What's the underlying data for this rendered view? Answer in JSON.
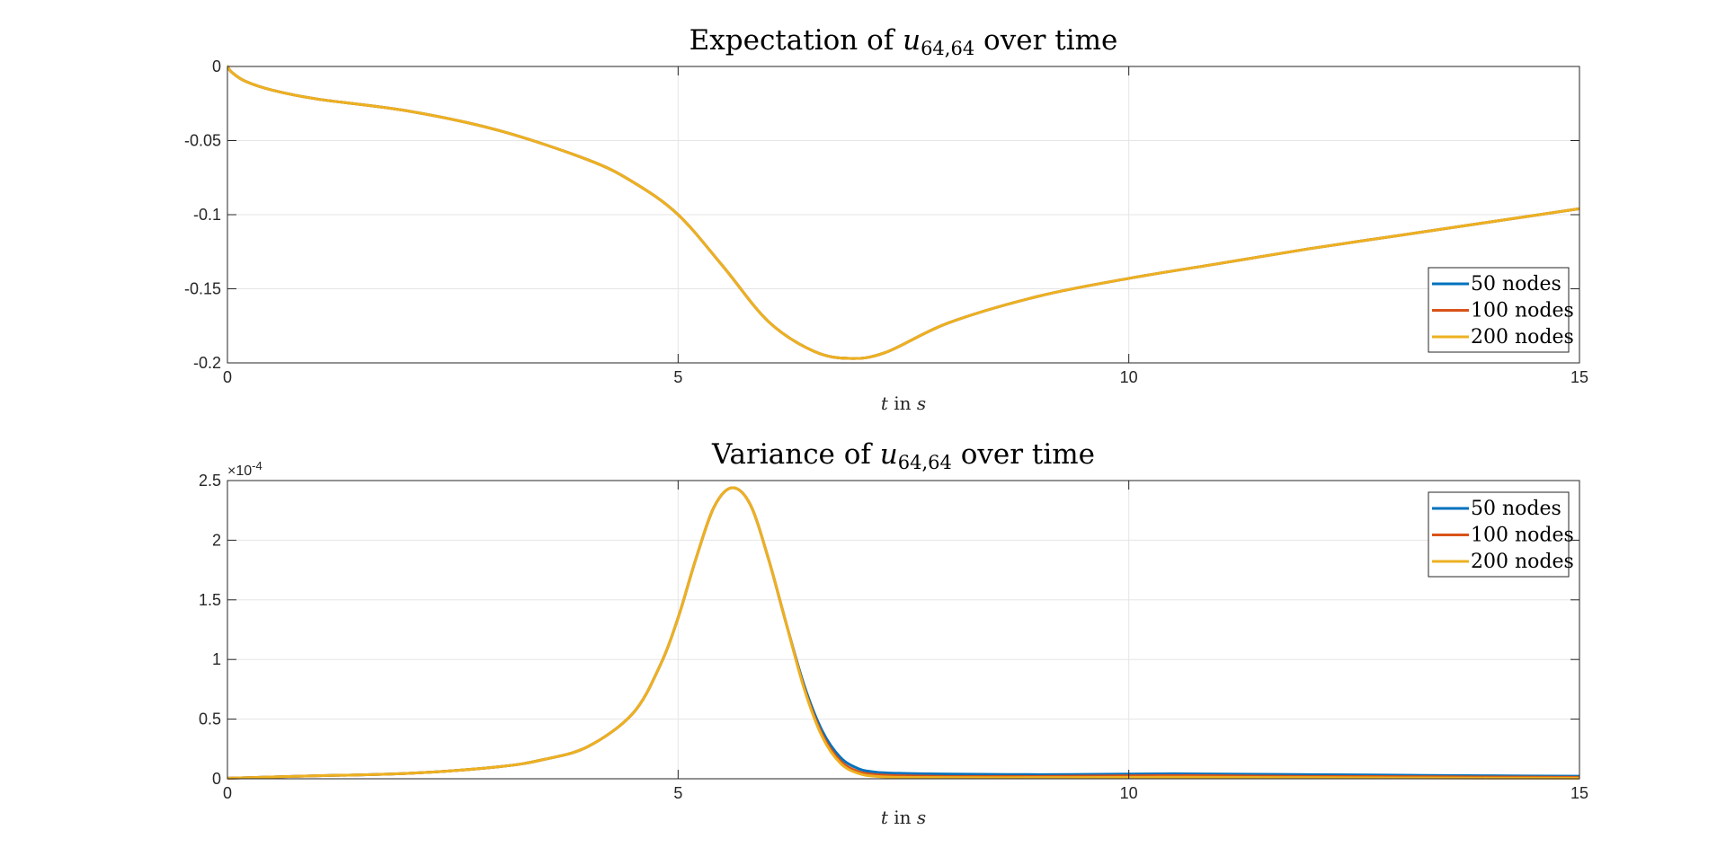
{
  "chart_data": [
    {
      "type": "line",
      "title": "Expectation of u_{64,64} over time",
      "title_parts": {
        "prefix": "Expectation of ",
        "var": "u",
        "sub": "64,64",
        "suffix": " over time"
      },
      "xlabel": "t in s",
      "xlabel_parts": {
        "t": "t",
        "in": " in ",
        "s": "s"
      },
      "ylabel": "",
      "xlim": [
        0,
        15
      ],
      "ylim": [
        -0.2,
        0
      ],
      "xticks": [
        0,
        5,
        10,
        15
      ],
      "xtick_labels": [
        "0",
        "5",
        "10",
        "15"
      ],
      "yticks": [
        0,
        -0.05,
        -0.1,
        -0.15,
        -0.2
      ],
      "ytick_labels": [
        "0",
        "-0.05",
        "-0.1",
        "-0.15",
        "-0.2"
      ],
      "grid": true,
      "legend_location": "southeast",
      "x": [
        0,
        0.05,
        0.2,
        0.5,
        1,
        2,
        3,
        4,
        4.5,
        5,
        5.5,
        6,
        6.5,
        6.9,
        7.3,
        8,
        9,
        10,
        11,
        12,
        13,
        14,
        15
      ],
      "series": [
        {
          "name": "50 nodes",
          "color": "#0072BD",
          "values": [
            0,
            -0.004,
            -0.01,
            -0.016,
            -0.022,
            -0.03,
            -0.043,
            -0.063,
            -0.078,
            -0.1,
            -0.135,
            -0.172,
            -0.192,
            -0.197,
            -0.193,
            -0.173,
            -0.155,
            -0.143,
            -0.133,
            -0.123,
            -0.114,
            -0.105,
            -0.096
          ]
        },
        {
          "name": "100 nodes",
          "color": "#D95319",
          "values": [
            0,
            -0.004,
            -0.01,
            -0.016,
            -0.022,
            -0.03,
            -0.043,
            -0.063,
            -0.078,
            -0.1,
            -0.135,
            -0.172,
            -0.192,
            -0.197,
            -0.193,
            -0.173,
            -0.155,
            -0.143,
            -0.133,
            -0.123,
            -0.114,
            -0.105,
            -0.096
          ]
        },
        {
          "name": "200 nodes",
          "color": "#EDB120",
          "values": [
            0,
            -0.004,
            -0.01,
            -0.016,
            -0.022,
            -0.03,
            -0.043,
            -0.063,
            -0.078,
            -0.1,
            -0.135,
            -0.172,
            -0.192,
            -0.197,
            -0.193,
            -0.173,
            -0.155,
            -0.143,
            -0.133,
            -0.123,
            -0.114,
            -0.105,
            -0.096
          ]
        }
      ]
    },
    {
      "type": "line",
      "title": "Variance of u_{64,64} over time",
      "title_parts": {
        "prefix": "Variance of ",
        "var": "u",
        "sub": "64,64",
        "suffix": " over time"
      },
      "xlabel": "t in s",
      "xlabel_parts": {
        "t": "t",
        "in": " in ",
        "s": "s"
      },
      "ylabel": "",
      "xlim": [
        0,
        15
      ],
      "ylim": [
        0,
        2.5
      ],
      "y_exponent_label": {
        "base": "×10",
        "exp": "-4"
      },
      "xticks": [
        0,
        5,
        10,
        15
      ],
      "xtick_labels": [
        "0",
        "5",
        "10",
        "15"
      ],
      "yticks": [
        0,
        0.5,
        1,
        1.5,
        2,
        2.5
      ],
      "ytick_labels": [
        "0",
        "0.5",
        "1",
        "1.5",
        "2",
        "2.5"
      ],
      "grid": true,
      "legend_location": "northeast",
      "x": [
        0,
        1,
        2,
        3,
        3.5,
        4,
        4.5,
        4.8,
        5,
        5.2,
        5.4,
        5.6,
        5.8,
        6,
        6.2,
        6.4,
        6.6,
        6.8,
        7,
        7.2,
        7.5,
        8,
        9,
        10,
        10.5,
        11,
        12,
        13,
        14,
        15
      ],
      "series": [
        {
          "name": "50 nodes",
          "color": "#0072BD",
          "values": [
            0.005,
            0.025,
            0.045,
            0.1,
            0.16,
            0.27,
            0.55,
            0.95,
            1.35,
            1.85,
            2.28,
            2.44,
            2.3,
            1.85,
            1.3,
            0.78,
            0.4,
            0.18,
            0.085,
            0.055,
            0.045,
            0.04,
            0.035,
            0.04,
            0.042,
            0.04,
            0.035,
            0.03,
            0.025,
            0.022
          ]
        },
        {
          "name": "100 nodes",
          "color": "#D95319",
          "values": [
            0.005,
            0.025,
            0.045,
            0.1,
            0.16,
            0.27,
            0.55,
            0.95,
            1.35,
            1.85,
            2.28,
            2.44,
            2.3,
            1.85,
            1.3,
            0.76,
            0.37,
            0.15,
            0.06,
            0.035,
            0.025,
            0.02,
            0.02,
            0.025,
            0.026,
            0.025,
            0.02,
            0.018,
            0.015,
            0.012
          ]
        },
        {
          "name": "200 nodes",
          "color": "#EDB120",
          "values": [
            0.005,
            0.025,
            0.045,
            0.1,
            0.16,
            0.27,
            0.55,
            0.95,
            1.35,
            1.85,
            2.28,
            2.44,
            2.3,
            1.85,
            1.3,
            0.75,
            0.35,
            0.13,
            0.045,
            0.02,
            0.012,
            0.01,
            0.01,
            0.012,
            0.013,
            0.012,
            0.01,
            0.008,
            0.006,
            0.005
          ]
        }
      ]
    }
  ]
}
